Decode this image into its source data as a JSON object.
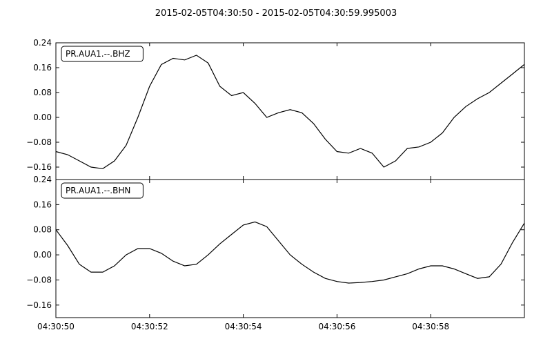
{
  "title": "2015-02-05T04:30:50  -  2015-02-05T04:30:59.995003",
  "chart_data": [
    {
      "type": "line",
      "label": "PR.AUA1.--.BHZ",
      "ylim": [
        -0.2,
        0.24
      ],
      "yticks": [
        "0.24",
        "0.16",
        "0.08",
        "0.00",
        "−0.08",
        "−0.16"
      ],
      "x": [
        0.0,
        0.25,
        0.5,
        0.75,
        1.0,
        1.25,
        1.5,
        1.75,
        2.0,
        2.25,
        2.5,
        2.75,
        3.0,
        3.25,
        3.5,
        3.75,
        4.0,
        4.25,
        4.5,
        4.75,
        5.0,
        5.25,
        5.5,
        5.75,
        6.0,
        6.25,
        6.5,
        6.75,
        7.0,
        7.25,
        7.5,
        7.75,
        8.0,
        8.25,
        8.5,
        8.75,
        9.0,
        9.25,
        9.5,
        9.75,
        9.995
      ],
      "values": [
        -0.11,
        -0.12,
        -0.14,
        -0.16,
        -0.165,
        -0.14,
        -0.09,
        0.0,
        0.1,
        0.17,
        0.19,
        0.185,
        0.2,
        0.175,
        0.1,
        0.07,
        0.08,
        0.045,
        0.0,
        0.015,
        0.025,
        0.015,
        -0.02,
        -0.07,
        -0.11,
        -0.115,
        -0.1,
        -0.115,
        -0.16,
        -0.14,
        -0.1,
        -0.095,
        -0.08,
        -0.05,
        0.0,
        0.035,
        0.06,
        0.08,
        0.11,
        0.14,
        0.17
      ]
    },
    {
      "type": "line",
      "label": "PR.AUA1.--.BHN",
      "ylim": [
        -0.2,
        0.24
      ],
      "yticks": [
        "0.24",
        "0.16",
        "0.08",
        "0.00",
        "−0.08",
        "−0.16"
      ],
      "x": [
        0.0,
        0.25,
        0.5,
        0.75,
        1.0,
        1.25,
        1.5,
        1.75,
        2.0,
        2.25,
        2.5,
        2.75,
        3.0,
        3.25,
        3.5,
        3.75,
        4.0,
        4.25,
        4.5,
        4.75,
        5.0,
        5.25,
        5.5,
        5.75,
        6.0,
        6.25,
        6.5,
        6.75,
        7.0,
        7.25,
        7.5,
        7.75,
        8.0,
        8.25,
        8.5,
        8.75,
        9.0,
        9.25,
        9.5,
        9.75,
        9.995
      ],
      "values": [
        0.08,
        0.03,
        -0.03,
        -0.055,
        -0.055,
        -0.035,
        0.0,
        0.02,
        0.02,
        0.005,
        -0.02,
        -0.035,
        -0.03,
        0.0,
        0.035,
        0.065,
        0.095,
        0.105,
        0.09,
        0.045,
        0.0,
        -0.03,
        -0.055,
        -0.075,
        -0.085,
        -0.09,
        -0.088,
        -0.085,
        -0.08,
        -0.07,
        -0.06,
        -0.045,
        -0.035,
        -0.035,
        -0.045,
        -0.06,
        -0.075,
        -0.07,
        -0.03,
        0.04,
        0.1
      ]
    }
  ],
  "xaxis": {
    "xlim": [
      0,
      10
    ],
    "ticks": [
      0,
      2,
      4,
      6,
      8
    ],
    "tick_labels": [
      "04:30:50",
      "04:30:52",
      "04:30:54",
      "04:30:56",
      "04:30:58"
    ]
  }
}
